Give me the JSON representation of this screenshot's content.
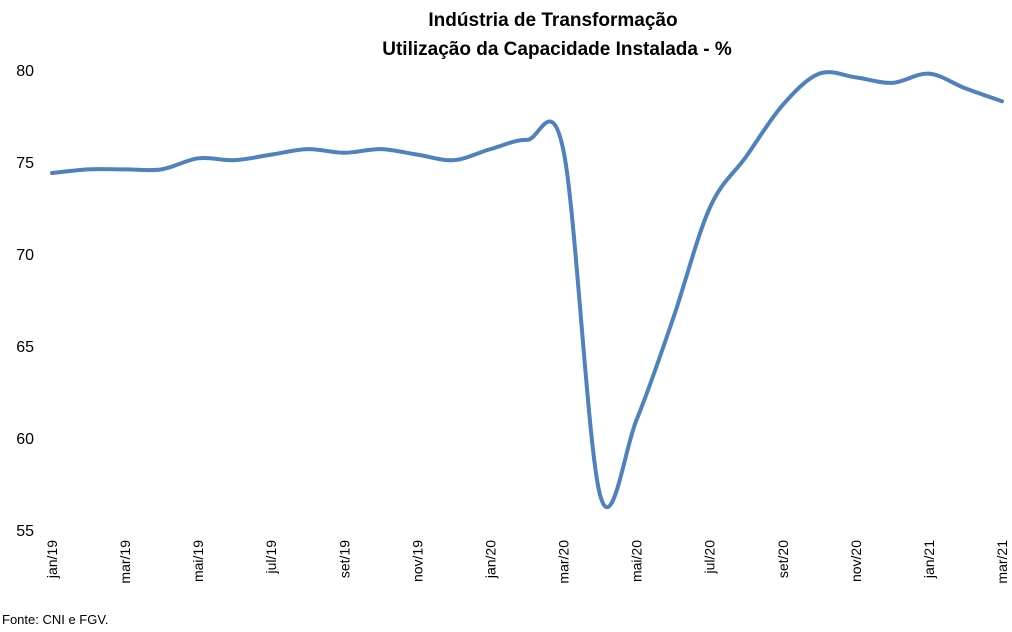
{
  "chart_data": {
    "type": "line",
    "title_line1": "Indústria de Transformação",
    "title_line2": "Utilização da Capacidade Instalada - %",
    "x": [
      "jan/19",
      "fev/19",
      "mar/19",
      "abr/19",
      "mai/19",
      "jun/19",
      "jul/19",
      "ago/19",
      "set/19",
      "out/19",
      "nov/19",
      "dez/19",
      "jan/20",
      "fev/20",
      "mar/20",
      "abr/20",
      "mai/20",
      "jun/20",
      "jul/20",
      "ago/20",
      "set/20",
      "out/20",
      "nov/20",
      "dez/20",
      "jan/21",
      "fev/21",
      "mar/21"
    ],
    "x_tick_labels": [
      "jan/19",
      "mar/19",
      "mai/19",
      "jul/19",
      "set/19",
      "nov/19",
      "jan/20",
      "mar/20",
      "mai/20",
      "jul/20",
      "set/20",
      "nov/20",
      "jan/21",
      "mar/21"
    ],
    "series": [
      {
        "values": [
          74.4,
          74.6,
          74.6,
          74.6,
          75.2,
          75.1,
          75.4,
          75.7,
          75.5,
          75.7,
          75.4,
          75.1,
          75.7,
          76.2,
          75.6,
          56.9,
          61.0,
          66.5,
          72.5,
          75.3,
          78.1,
          79.8,
          79.6,
          79.3,
          79.8,
          79.0,
          78.3
        ]
      }
    ],
    "ylim": [
      55,
      80
    ],
    "y_ticks": [
      "55",
      "60",
      "65",
      "70",
      "75",
      "80"
    ],
    "grid": false,
    "line_color": "#4F81BD"
  },
  "source_note": "Fonte: CNI e FGV."
}
